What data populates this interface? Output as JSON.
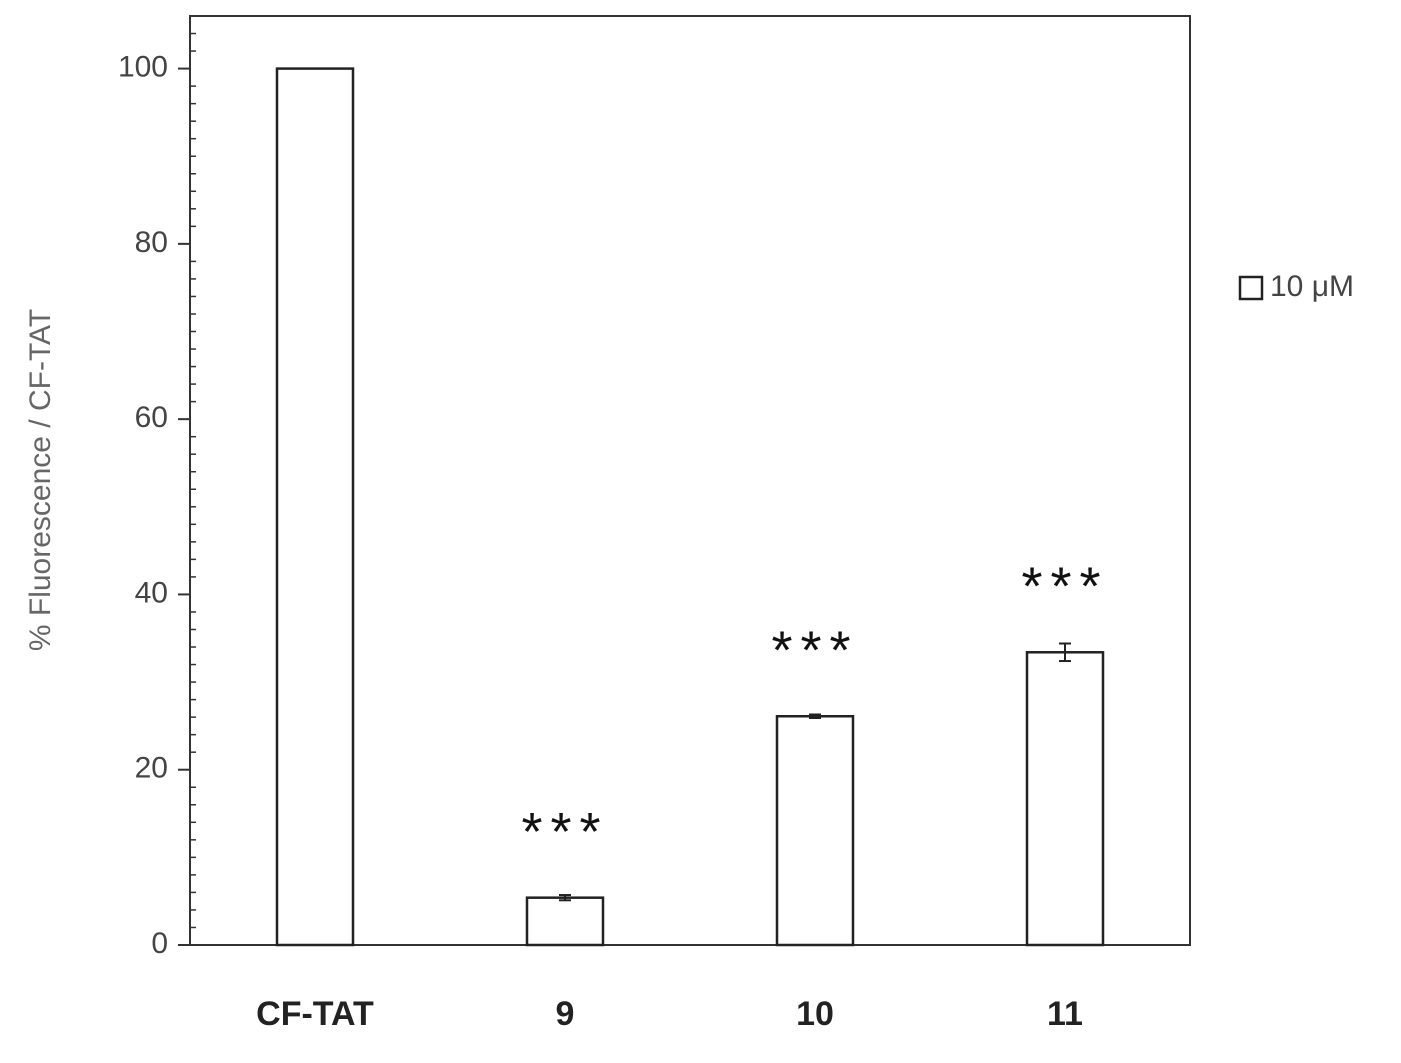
{
  "chart_data": {
    "type": "bar",
    "ylabel": "% Fluorescence  / CF-TAT",
    "categories": [
      "CF-TAT",
      "9",
      "10",
      "11"
    ],
    "series": [
      {
        "name": "10 μM",
        "color": "#ffffff",
        "values": [
          100,
          5.4,
          26.1,
          33.4
        ],
        "errors": [
          0,
          0.3,
          0.2,
          1.0
        ]
      }
    ],
    "significance": [
      null,
      "***",
      "***",
      "***"
    ],
    "ylim": [
      0,
      106
    ],
    "yticks": [
      0,
      20,
      40,
      60,
      80,
      100
    ],
    "minor_yticks": [
      2,
      4,
      6,
      8,
      10,
      12,
      14,
      16,
      18,
      22,
      24,
      26,
      28,
      30,
      32,
      34,
      36,
      38,
      42,
      44,
      46,
      48,
      50,
      52,
      54,
      56,
      58,
      62,
      64,
      66,
      68,
      70,
      72,
      74,
      76,
      78,
      82,
      84,
      86,
      88,
      90,
      92,
      94,
      96,
      98,
      102,
      104
    ],
    "legend": "right",
    "grid": false
  }
}
